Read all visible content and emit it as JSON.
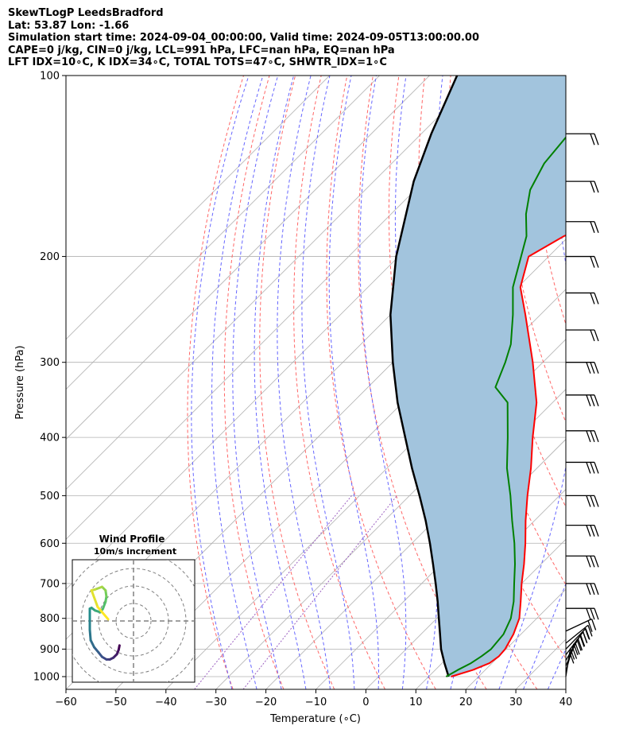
{
  "header": {
    "line1": "SkewTLogP LeedsBradford",
    "line2": "Lat: 53.87   Lon: -1.66",
    "line3": "Simulation start time: 2024-09-04_00:00:00, Valid time: 2024-09-05T13:00:00.00",
    "line4": "CAPE=0 j/kg, CIN=0 j/kg, LCL=991 hPa, LFC=nan hPa, EQ=nan hPa",
    "line5": "LFT IDX=10∘C, K IDX=34∘C, TOTAL TOTS=47∘C, SHWTR_IDX=1∘C"
  },
  "chart_data": [
    {
      "type": "line",
      "chart_kind": "skew-t log-p",
      "xlabel": "Temperature (∘C)",
      "ylabel": "Pressure (hPa)",
      "xlim": [
        -60,
        40
      ],
      "ylim": [
        1050,
        100
      ],
      "y_scale": "log",
      "x_ticks": [
        -60,
        -50,
        -40,
        -30,
        -20,
        -10,
        0,
        10,
        20,
        30,
        40
      ],
      "y_ticks": [
        1000,
        900,
        800,
        700,
        600,
        500,
        400,
        300,
        200,
        100
      ],
      "grid": true,
      "colors": {
        "temperature": "#ff0000",
        "dewpoint": "#008000",
        "parcel": "#000000",
        "shading": "#a2c4dd",
        "dry_adiabats": "#ff6666",
        "moist_adiabats": "#6666ff",
        "mixing_ratio": "#9b5fc0",
        "isotherms": "#b0b0b0"
      },
      "series": [
        {
          "style": "temperature",
          "pressure": [
            1000,
            975,
            950,
            925,
            900,
            850,
            800,
            750,
            700,
            650,
            600,
            550,
            500,
            450,
            400,
            350,
            300,
            250,
            225,
            200,
            185,
            170,
            155,
            140,
            125,
            110,
            100
          ],
          "temperature": [
            14.5,
            17.5,
            19.5,
            20.0,
            19.8,
            18.5,
            16.5,
            13.4,
            10.0,
            6.6,
            2.7,
            -1.8,
            -6.4,
            -11.2,
            -17.0,
            -23.2,
            -32.0,
            -43.0,
            -49.5,
            -54.0,
            -51.0,
            -45.0,
            -39.0,
            -34.5,
            -30.5,
            -26.5,
            -24.5
          ]
        },
        {
          "style": "dewpoint",
          "pressure": [
            1000,
            975,
            950,
            925,
            900,
            850,
            800,
            750,
            700,
            650,
            600,
            550,
            500,
            450,
            400,
            350,
            330,
            300,
            280,
            250,
            225,
            200,
            185,
            170,
            155,
            140,
            125,
            110,
            100
          ],
          "dewpoint": [
            13.5,
            14.5,
            15.8,
            16.5,
            17.0,
            16.5,
            14.8,
            12.0,
            8.5,
            4.8,
            0.5,
            -4.5,
            -9.8,
            -16.0,
            -22.0,
            -29.0,
            -34.5,
            -37.5,
            -40.0,
            -45.5,
            -51.0,
            -55.5,
            -58.5,
            -63.0,
            -67.0,
            -69.5,
            -70.5,
            -72.0,
            -73.5
          ]
        },
        {
          "style": "parcel",
          "pressure": [
            1000,
            950,
            900,
            850,
            800,
            750,
            700,
            650,
            600,
            550,
            500,
            450,
            400,
            350,
            300,
            250,
            200,
            150,
            125,
            100
          ],
          "temperature": [
            14.0,
            10.5,
            7.0,
            3.8,
            0.4,
            -3.2,
            -7.2,
            -11.6,
            -16.4,
            -21.8,
            -28.0,
            -35.0,
            -42.5,
            -51.0,
            -60.0,
            -70.0,
            -80.5,
            -92.0,
            -98.0,
            -104.5
          ]
        }
      ],
      "wind_barbs_pressure": [
        125,
        150,
        175,
        200,
        230,
        265,
        300,
        340,
        390,
        440,
        500,
        560,
        630,
        700,
        770,
        840,
        880,
        900,
        920,
        940,
        960,
        980,
        1000
      ]
    },
    {
      "type": "line",
      "chart_kind": "hodograph",
      "title": "Wind Profile",
      "subtitle": "10m/s increment",
      "rings": [
        10,
        20,
        30,
        40
      ],
      "range": [
        -35,
        35
      ],
      "colormap": [
        "#440154",
        "#3b528b",
        "#21918c",
        "#5ec962",
        "#fde725"
      ],
      "u": [
        -8.0,
        -8.5,
        -9.5,
        -11.5,
        -13.5,
        -15.5,
        -18.0,
        -20.0,
        -22.5,
        -24.5,
        -25.0,
        -25.0,
        -25.0,
        -24.0,
        -22.0,
        -19.0,
        -17.5,
        -16.0,
        -15.5,
        -16.0,
        -18.0,
        -22.0,
        -24.0,
        -20.5,
        -14.5
      ],
      "v": [
        -14.0,
        -16.5,
        -19.0,
        -21.0,
        -22.0,
        -22.0,
        -20.5,
        -18.0,
        -15.0,
        -11.0,
        -5.0,
        1.0,
        7.0,
        7.5,
        6.0,
        5.0,
        7.0,
        11.0,
        14.0,
        17.5,
        19.5,
        18.0,
        17.5,
        8.0,
        1.0
      ]
    }
  ]
}
